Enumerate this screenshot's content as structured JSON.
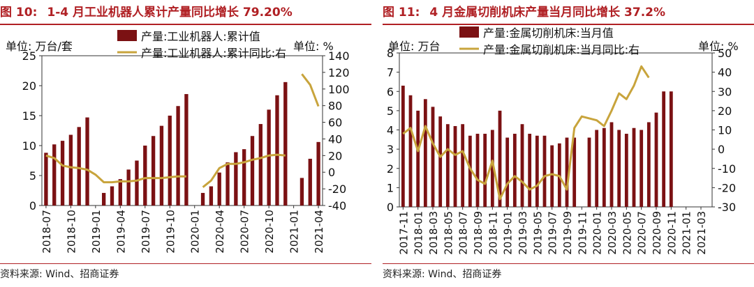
{
  "panels": [
    {
      "title_prefix": "图 10:",
      "title_text": "1-4 月工业机器人累计产量同比增长 79.20%",
      "source": "资料来源: Wind、招商证券",
      "chart_data": {
        "type": "bar+line",
        "left_unit": "单位:  万台/套",
        "right_unit": "单位:  %",
        "categories": [
          "2018-07",
          "2018-08",
          "2018-09",
          "2018-10",
          "2018-11",
          "2018-12",
          "2019-01",
          "2019-02",
          "2019-03",
          "2019-04",
          "2019-05",
          "2019-06",
          "2019-07",
          "2019-08",
          "2019-09",
          "2019-10",
          "2019-11",
          "2019-12",
          "2020-01",
          "2020-02",
          "2020-03",
          "2020-04",
          "2020-05",
          "2020-06",
          "2020-07",
          "2020-08",
          "2020-09",
          "2020-10",
          "2020-11",
          "2020-12",
          "2021-01",
          "2021-02",
          "2021-03",
          "2021-04"
        ],
        "tick_labels": [
          "2018-07",
          "2018-10",
          "2019-01",
          "2019-04",
          "2019-07",
          "2019-10",
          "2020-01",
          "2020-04",
          "2020-07",
          "2020-10",
          "2021-01",
          "2021-04"
        ],
        "series": [
          {
            "name": "产量:工业机器人:累计值",
            "kind": "bar",
            "axis": "left",
            "color": "#7b1113",
            "values": [
              8.8,
              10.2,
              10.8,
              11.8,
              13.1,
              14.7,
              null,
              2.1,
              3.2,
              4.4,
              6.0,
              7.5,
              10.0,
              11.6,
              13.3,
              15.0,
              16.6,
              18.6,
              null,
              2.1,
              3.2,
              5.5,
              7.2,
              8.9,
              9.4,
              11.6,
              13.6,
              16.0,
              18.4,
              20.6,
              null,
              4.6,
              7.8,
              10.6
            ]
          },
          {
            "name": "产量:工业机器人:累计同比:右",
            "kind": "line",
            "axis": "right",
            "color": "#c8a43c",
            "values": [
              20,
              17,
              8,
              6,
              5,
              3,
              -3,
              -12,
              -12,
              -11,
              -11,
              -10,
              -7,
              -7,
              -7,
              -6,
              -5,
              -5,
              null,
              -18,
              -10,
              5,
              10,
              10,
              12,
              15,
              17,
              20,
              21,
              20,
              null,
              118,
              105,
              79.2
            ]
          }
        ],
        "left_axis": {
          "min": 0,
          "max": 25,
          "ticks": [
            0,
            5,
            10,
            15,
            20,
            25
          ]
        },
        "right_axis": {
          "min": -40,
          "max": 140,
          "ticks": [
            -40,
            -20,
            0,
            20,
            40,
            60,
            80,
            100,
            120,
            140
          ]
        },
        "legend_position": "top"
      }
    },
    {
      "title_prefix": "图 11:",
      "title_text": "4 月金属切削机床产量当月同比增长 37.2%",
      "source": "资料来源: Wind、招商证券",
      "chart_data": {
        "type": "bar+line",
        "left_unit": "单位:  万台",
        "right_unit": "单位:  %",
        "categories": [
          "2017-11",
          "2017-12",
          "2018-01",
          "2018-02",
          "2018-03",
          "2018-04",
          "2018-05",
          "2018-06",
          "2018-07",
          "2018-08",
          "2018-09",
          "2018-10",
          "2018-11",
          "2018-12",
          "2019-01",
          "2019-02",
          "2019-03",
          "2019-04",
          "2019-05",
          "2019-06",
          "2019-07",
          "2019-08",
          "2019-09",
          "2019-10",
          "2019-11",
          "2019-12",
          "2020-01",
          "2020-02",
          "2020-03",
          "2020-04",
          "2020-05",
          "2020-06",
          "2020-07",
          "2020-08",
          "2020-09",
          "2020-10",
          "2020-11",
          "2020-12",
          "2021-01",
          "2021-02",
          "2021-03",
          "2021-04"
        ],
        "tick_labels": [
          "2017-11",
          "2018-01",
          "2018-03",
          "2018-05",
          "2018-07",
          "2018-09",
          "2018-11",
          "2019-01",
          "2019-03",
          "2019-05",
          "2019-07",
          "2019-09",
          "2019-11",
          "2020-01",
          "2020-03",
          "2020-05",
          "2020-07",
          "2020-09",
          "2020-11",
          "2021-01",
          "2021-03"
        ],
        "series": [
          {
            "name": "产量:金属切削机床:当月值",
            "kind": "bar",
            "axis": "left",
            "color": "#7b1113",
            "values": [
              6.3,
              5.8,
              5.0,
              5.6,
              5.2,
              4.7,
              4.3,
              4.2,
              4.3,
              3.7,
              3.8,
              3.8,
              4.0,
              5.0,
              3.6,
              3.8,
              4.3,
              3.8,
              3.7,
              3.7,
              3.2,
              3.3,
              3.6,
              3.6,
              null,
              3.6,
              4.0,
              4.1,
              4.4,
              4.0,
              3.8,
              4.1,
              4.0,
              4.4,
              4.9,
              6.0,
              6.0,
              null,
              null,
              null,
              null,
              null
            ]
          },
          {
            "name": "产量:金属切削机床:当月同比:右",
            "kind": "line",
            "axis": "right",
            "color": "#c8a43c",
            "values": [
              8,
              11,
              -1,
              12,
              3,
              -4,
              0,
              -3,
              -1,
              -10,
              -16,
              -18,
              -6,
              -26,
              -18,
              -14,
              -17,
              -21,
              -19,
              -14,
              -13,
              -14,
              -21,
              11,
              17,
              16,
              15,
              12,
              20,
              29,
              26,
              33,
              43,
              37.2,
              null,
              null,
              null,
              null,
              null,
              null,
              null,
              null
            ]
          }
        ],
        "left_axis": {
          "min": 0,
          "max": 8,
          "ticks": [
            0,
            1,
            2,
            3,
            4,
            5,
            6,
            7,
            8
          ]
        },
        "right_axis": {
          "min": -30,
          "max": 50,
          "ticks": [
            -30,
            -20,
            -10,
            0,
            10,
            20,
            30,
            40,
            50
          ]
        },
        "legend_position": "top"
      }
    }
  ]
}
